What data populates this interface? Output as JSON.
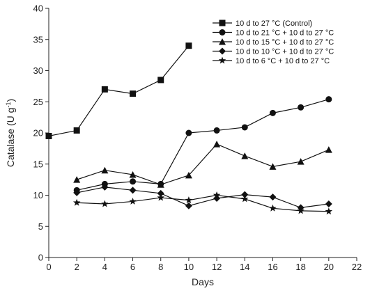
{
  "chart_data": {
    "type": "line",
    "xlabel": "Days",
    "ylabel_main": "Catalase (U g",
    "ylabel_sup": "-1",
    "ylabel_close": ")",
    "xlim": [
      0,
      22
    ],
    "ylim": [
      0,
      40
    ],
    "xticks": [
      0,
      2,
      4,
      6,
      8,
      10,
      12,
      14,
      16,
      18,
      20,
      22
    ],
    "yticks": [
      0,
      5,
      10,
      15,
      20,
      25,
      30,
      35,
      40
    ],
    "legend_position": "top-right",
    "grid": false,
    "series": [
      {
        "name": "10 d to  27 °C (Control)",
        "marker": "square",
        "x": [
          0,
          2,
          4,
          6,
          8,
          10
        ],
        "y": [
          19.5,
          20.4,
          27.0,
          26.3,
          28.5,
          34.0
        ]
      },
      {
        "name": "10 d to  21 °C + 10 d to 27 °C",
        "marker": "circle",
        "x": [
          2,
          4,
          6,
          8,
          10,
          12,
          14,
          16,
          18,
          20
        ],
        "y": [
          10.8,
          11.8,
          12.2,
          11.8,
          20.0,
          20.4,
          20.9,
          23.2,
          24.1,
          25.4
        ]
      },
      {
        "name": "10 d to 15 °C + 10 d to 27 °C",
        "marker": "triangle",
        "x": [
          2,
          4,
          6,
          8,
          10,
          12,
          14,
          16,
          18,
          20
        ],
        "y": [
          12.5,
          14.0,
          13.3,
          11.7,
          13.2,
          18.2,
          16.3,
          14.6,
          15.4,
          17.3
        ]
      },
      {
        "name": "10 d to 10 °C + 10 d to 27 °C",
        "marker": "diamond",
        "x": [
          2,
          4,
          6,
          8,
          10,
          12,
          14,
          16,
          18,
          20
        ],
        "y": [
          10.4,
          11.3,
          10.8,
          10.3,
          8.3,
          9.5,
          10.1,
          9.7,
          8.0,
          8.6
        ]
      },
      {
        "name": "10 d to   6 °C + 10 d to 27 °C",
        "marker": "star",
        "x": [
          2,
          4,
          6,
          8,
          10,
          12,
          14,
          16,
          18,
          20
        ],
        "y": [
          8.8,
          8.6,
          9.0,
          9.6,
          9.2,
          10.0,
          9.4,
          7.9,
          7.5,
          7.4
        ]
      }
    ]
  }
}
